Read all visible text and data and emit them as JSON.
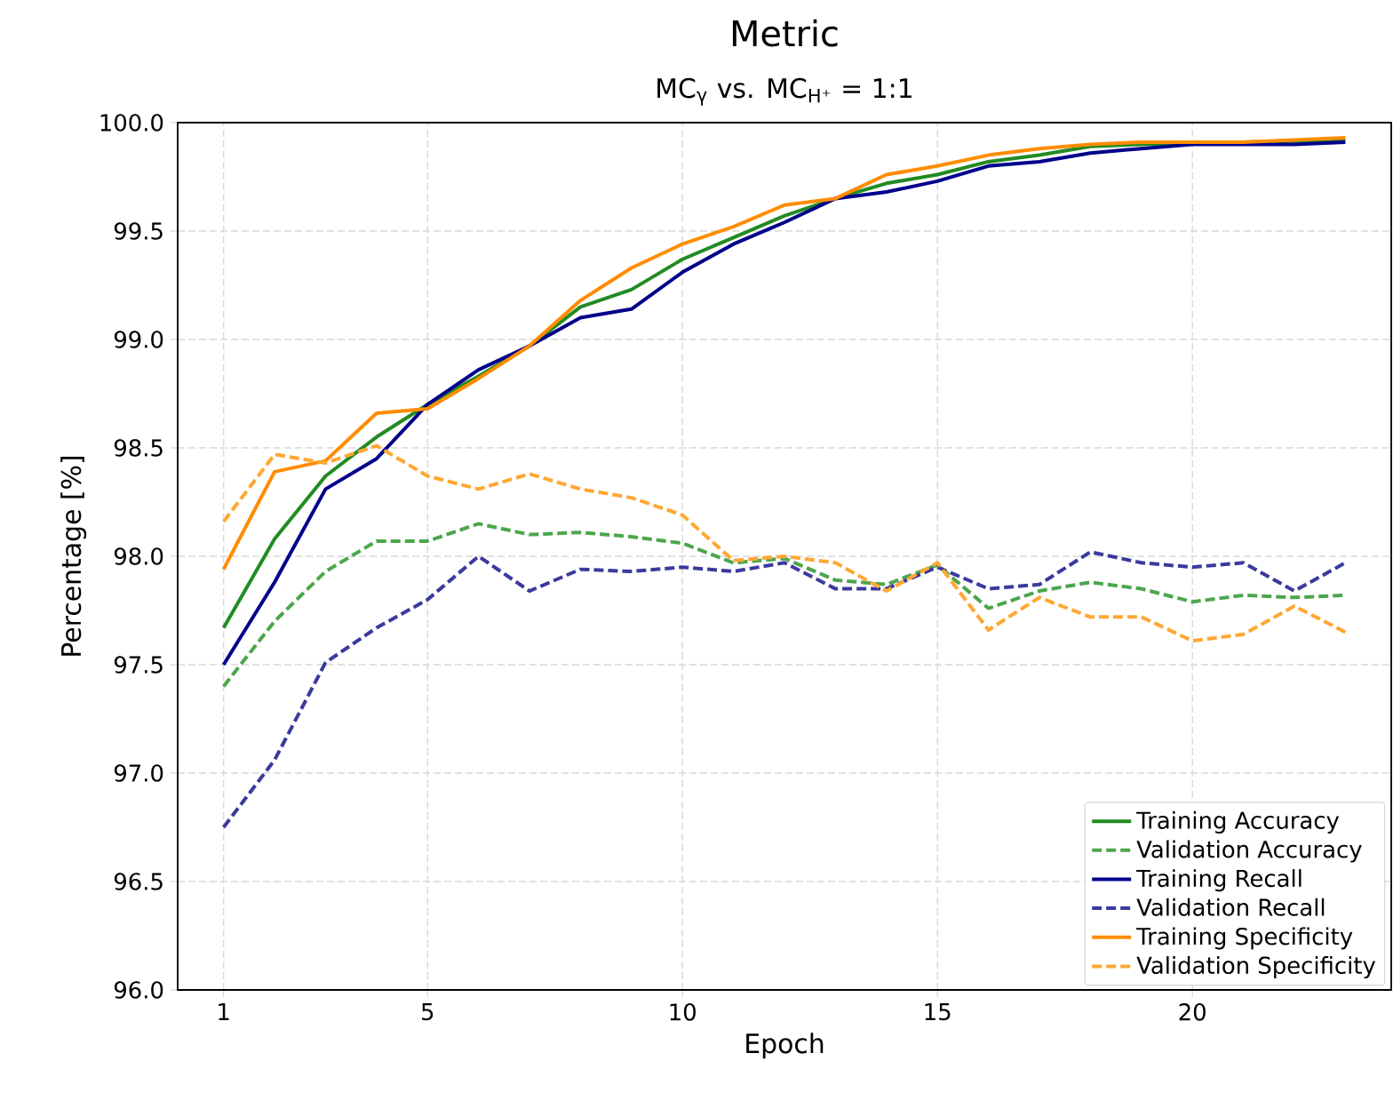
{
  "chart_data": {
    "type": "line",
    "title": "Metric",
    "subtitle": "MC$_{γ}$ vs. MC$_{H⁺}$ = 1:1",
    "xlabel": "Epoch",
    "ylabel": "Percentage [%]",
    "x": [
      1,
      2,
      3,
      4,
      5,
      6,
      7,
      8,
      9,
      10,
      11,
      12,
      13,
      14,
      15,
      16,
      17,
      18,
      19,
      20,
      21,
      22,
      23
    ],
    "xlim": [
      0.1,
      23.9
    ],
    "xticks": [
      1,
      5,
      10,
      15,
      20
    ],
    "ylim": [
      96,
      100
    ],
    "yticks": [
      {
        "value": 96,
        "label": "96.0"
      },
      {
        "value": 96.5,
        "label": "96.5"
      },
      {
        "value": 97,
        "label": "97.0"
      },
      {
        "value": 97.5,
        "label": "97.5"
      },
      {
        "value": 98,
        "label": "98.0"
      },
      {
        "value": 98.5,
        "label": "98.5"
      },
      {
        "value": 99,
        "label": "99.0"
      },
      {
        "value": 99.5,
        "label": "99.5"
      },
      {
        "value": 100,
        "label": "100.0"
      }
    ],
    "grid": true,
    "legend": "bottom right",
    "marker": "none",
    "series": [
      {
        "name": "Training Accuracy",
        "color": "#228b22",
        "line_style": "solid",
        "values": [
          97.67,
          98.08,
          98.37,
          98.55,
          98.7,
          98.83,
          98.97,
          99.15,
          99.23,
          99.37,
          99.47,
          99.57,
          99.65,
          99.72,
          99.76,
          99.82,
          99.85,
          99.89,
          99.9,
          null,
          null,
          null,
          99.92
        ]
      },
      {
        "name": "Validation Accuracy",
        "color": "#4ca64c",
        "line_style": "dashed",
        "values": [
          97.4,
          97.7,
          97.93,
          98.07,
          98.07,
          98.15,
          98.1,
          98.11,
          98.09,
          98.06,
          97.97,
          97.99,
          97.89,
          97.87,
          97.96,
          97.76,
          97.84,
          97.88,
          97.85,
          97.79,
          97.82,
          97.81,
          97.82
        ]
      },
      {
        "name": "Training Recall",
        "color": "#00008b",
        "line_style": "solid",
        "values": [
          97.5,
          97.88,
          98.31,
          98.45,
          98.7,
          98.86,
          98.97,
          99.1,
          99.14,
          99.31,
          99.44,
          99.54,
          99.65,
          99.68,
          99.73,
          99.8,
          99.82,
          99.86,
          99.88,
          99.9,
          99.9,
          99.9,
          99.91
        ]
      },
      {
        "name": "Validation Recall",
        "color": "#3a3a9e",
        "line_style": "dashed",
        "values": [
          96.75,
          97.06,
          97.51,
          97.67,
          97.8,
          98.0,
          97.84,
          97.94,
          97.93,
          97.95,
          97.93,
          97.97,
          97.85,
          97.85,
          97.95,
          97.85,
          97.87,
          98.02,
          97.97,
          97.95,
          97.97,
          97.84,
          97.97
        ]
      },
      {
        "name": "Training Specificity",
        "color": "#ff8c00",
        "line_style": "solid",
        "values": [
          97.94,
          98.39,
          98.44,
          98.66,
          98.68,
          98.82,
          98.97,
          99.18,
          99.33,
          99.44,
          99.52,
          99.62,
          99.65,
          99.76,
          99.8,
          99.85,
          99.88,
          99.9,
          99.91,
          99.91,
          99.91,
          99.92,
          99.93
        ]
      },
      {
        "name": "Validation Specificity",
        "color": "#ffa733",
        "line_style": "dashed",
        "values": [
          98.16,
          98.47,
          98.43,
          98.51,
          98.37,
          98.31,
          98.38,
          98.31,
          98.27,
          98.19,
          97.98,
          98.0,
          97.97,
          97.84,
          97.97,
          97.66,
          97.81,
          97.72,
          97.72,
          97.61,
          97.64,
          97.77,
          97.65
        ]
      }
    ]
  }
}
